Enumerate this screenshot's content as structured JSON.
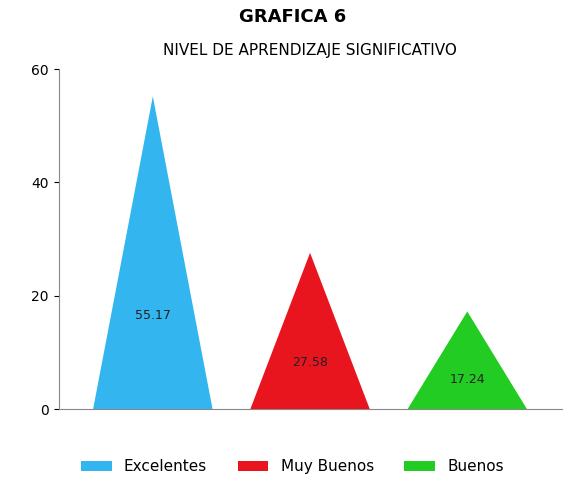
{
  "chart_data": {
    "type": "bar",
    "title": "GRAFICA 6",
    "subtitle": "NIVEL DE APRENDIZAJE SIGNIFICATIVO",
    "categories": [
      "Excelentes",
      "Muy Buenos",
      "Buenos"
    ],
    "values": [
      55.17,
      27.58,
      17.24
    ],
    "colors": [
      "#33b5f0",
      "#e8141e",
      "#22cc22"
    ],
    "ylim": [
      0,
      60
    ],
    "yticks": [
      0,
      20,
      40,
      60
    ],
    "data_labels": true,
    "legend": "lower center",
    "tick_labels": "y"
  }
}
